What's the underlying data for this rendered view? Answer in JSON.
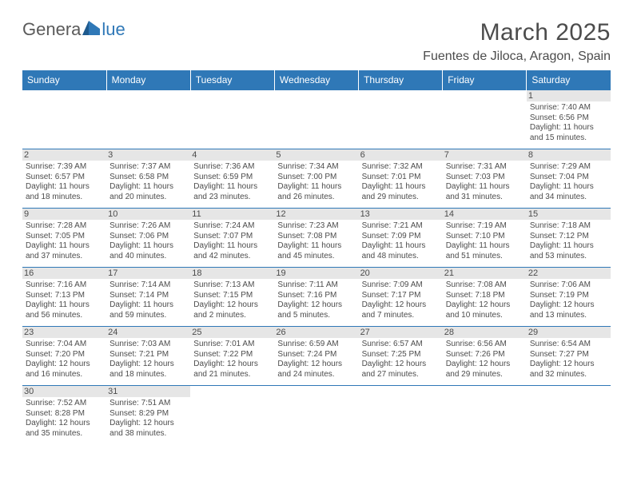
{
  "logo": {
    "text_gen": "Genera",
    "text_blue": "lue"
  },
  "title": "March 2025",
  "location": "Fuentes de Jiloca, Aragon, Spain",
  "colors": {
    "accent": "#2f78b7",
    "header_bg": "#2f78b7",
    "daynum_bg": "#e6e6e6",
    "text": "#4c4c4c"
  },
  "weekdays": [
    "Sunday",
    "Monday",
    "Tuesday",
    "Wednesday",
    "Thursday",
    "Friday",
    "Saturday"
  ],
  "weeks": [
    [
      null,
      null,
      null,
      null,
      null,
      null,
      {
        "n": "1",
        "sr": "Sunrise: 7:40 AM",
        "ss": "Sunset: 6:56 PM",
        "dl": "Daylight: 11 hours and 15 minutes."
      }
    ],
    [
      {
        "n": "2",
        "sr": "Sunrise: 7:39 AM",
        "ss": "Sunset: 6:57 PM",
        "dl": "Daylight: 11 hours and 18 minutes."
      },
      {
        "n": "3",
        "sr": "Sunrise: 7:37 AM",
        "ss": "Sunset: 6:58 PM",
        "dl": "Daylight: 11 hours and 20 minutes."
      },
      {
        "n": "4",
        "sr": "Sunrise: 7:36 AM",
        "ss": "Sunset: 6:59 PM",
        "dl": "Daylight: 11 hours and 23 minutes."
      },
      {
        "n": "5",
        "sr": "Sunrise: 7:34 AM",
        "ss": "Sunset: 7:00 PM",
        "dl": "Daylight: 11 hours and 26 minutes."
      },
      {
        "n": "6",
        "sr": "Sunrise: 7:32 AM",
        "ss": "Sunset: 7:01 PM",
        "dl": "Daylight: 11 hours and 29 minutes."
      },
      {
        "n": "7",
        "sr": "Sunrise: 7:31 AM",
        "ss": "Sunset: 7:03 PM",
        "dl": "Daylight: 11 hours and 31 minutes."
      },
      {
        "n": "8",
        "sr": "Sunrise: 7:29 AM",
        "ss": "Sunset: 7:04 PM",
        "dl": "Daylight: 11 hours and 34 minutes."
      }
    ],
    [
      {
        "n": "9",
        "sr": "Sunrise: 7:28 AM",
        "ss": "Sunset: 7:05 PM",
        "dl": "Daylight: 11 hours and 37 minutes."
      },
      {
        "n": "10",
        "sr": "Sunrise: 7:26 AM",
        "ss": "Sunset: 7:06 PM",
        "dl": "Daylight: 11 hours and 40 minutes."
      },
      {
        "n": "11",
        "sr": "Sunrise: 7:24 AM",
        "ss": "Sunset: 7:07 PM",
        "dl": "Daylight: 11 hours and 42 minutes."
      },
      {
        "n": "12",
        "sr": "Sunrise: 7:23 AM",
        "ss": "Sunset: 7:08 PM",
        "dl": "Daylight: 11 hours and 45 minutes."
      },
      {
        "n": "13",
        "sr": "Sunrise: 7:21 AM",
        "ss": "Sunset: 7:09 PM",
        "dl": "Daylight: 11 hours and 48 minutes."
      },
      {
        "n": "14",
        "sr": "Sunrise: 7:19 AM",
        "ss": "Sunset: 7:10 PM",
        "dl": "Daylight: 11 hours and 51 minutes."
      },
      {
        "n": "15",
        "sr": "Sunrise: 7:18 AM",
        "ss": "Sunset: 7:12 PM",
        "dl": "Daylight: 11 hours and 53 minutes."
      }
    ],
    [
      {
        "n": "16",
        "sr": "Sunrise: 7:16 AM",
        "ss": "Sunset: 7:13 PM",
        "dl": "Daylight: 11 hours and 56 minutes."
      },
      {
        "n": "17",
        "sr": "Sunrise: 7:14 AM",
        "ss": "Sunset: 7:14 PM",
        "dl": "Daylight: 11 hours and 59 minutes."
      },
      {
        "n": "18",
        "sr": "Sunrise: 7:13 AM",
        "ss": "Sunset: 7:15 PM",
        "dl": "Daylight: 12 hours and 2 minutes."
      },
      {
        "n": "19",
        "sr": "Sunrise: 7:11 AM",
        "ss": "Sunset: 7:16 PM",
        "dl": "Daylight: 12 hours and 5 minutes."
      },
      {
        "n": "20",
        "sr": "Sunrise: 7:09 AM",
        "ss": "Sunset: 7:17 PM",
        "dl": "Daylight: 12 hours and 7 minutes."
      },
      {
        "n": "21",
        "sr": "Sunrise: 7:08 AM",
        "ss": "Sunset: 7:18 PM",
        "dl": "Daylight: 12 hours and 10 minutes."
      },
      {
        "n": "22",
        "sr": "Sunrise: 7:06 AM",
        "ss": "Sunset: 7:19 PM",
        "dl": "Daylight: 12 hours and 13 minutes."
      }
    ],
    [
      {
        "n": "23",
        "sr": "Sunrise: 7:04 AM",
        "ss": "Sunset: 7:20 PM",
        "dl": "Daylight: 12 hours and 16 minutes."
      },
      {
        "n": "24",
        "sr": "Sunrise: 7:03 AM",
        "ss": "Sunset: 7:21 PM",
        "dl": "Daylight: 12 hours and 18 minutes."
      },
      {
        "n": "25",
        "sr": "Sunrise: 7:01 AM",
        "ss": "Sunset: 7:22 PM",
        "dl": "Daylight: 12 hours and 21 minutes."
      },
      {
        "n": "26",
        "sr": "Sunrise: 6:59 AM",
        "ss": "Sunset: 7:24 PM",
        "dl": "Daylight: 12 hours and 24 minutes."
      },
      {
        "n": "27",
        "sr": "Sunrise: 6:57 AM",
        "ss": "Sunset: 7:25 PM",
        "dl": "Daylight: 12 hours and 27 minutes."
      },
      {
        "n": "28",
        "sr": "Sunrise: 6:56 AM",
        "ss": "Sunset: 7:26 PM",
        "dl": "Daylight: 12 hours and 29 minutes."
      },
      {
        "n": "29",
        "sr": "Sunrise: 6:54 AM",
        "ss": "Sunset: 7:27 PM",
        "dl": "Daylight: 12 hours and 32 minutes."
      }
    ],
    [
      {
        "n": "30",
        "sr": "Sunrise: 7:52 AM",
        "ss": "Sunset: 8:28 PM",
        "dl": "Daylight: 12 hours and 35 minutes."
      },
      {
        "n": "31",
        "sr": "Sunrise: 7:51 AM",
        "ss": "Sunset: 8:29 PM",
        "dl": "Daylight: 12 hours and 38 minutes."
      },
      null,
      null,
      null,
      null,
      null
    ]
  ]
}
